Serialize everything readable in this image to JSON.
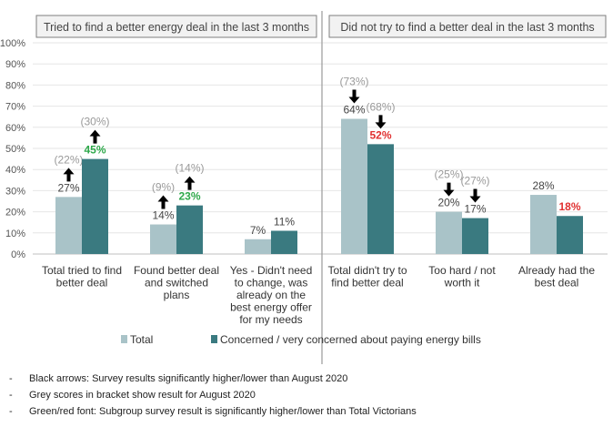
{
  "chart_data": {
    "type": "bar",
    "panels": [
      {
        "title": "Tried to find a better energy deal in the last 3 months"
      },
      {
        "title": "Did not try to find a better deal in the last 3 months"
      }
    ],
    "categories": [
      [
        "Total tried to find",
        "better deal"
      ],
      [
        "Found better deal",
        "and switched",
        "plans"
      ],
      [
        "Yes - Didn't need",
        "to change, was",
        "already on the",
        "best energy offer",
        "for my needs"
      ],
      [
        "Total didn't try to",
        "find better deal"
      ],
      [
        "Too hard / not",
        "worth it"
      ],
      [
        "Already had the",
        "best deal"
      ]
    ],
    "series": [
      {
        "name": "Total",
        "color": "#a9c3c8",
        "values": [
          27,
          14,
          7,
          64,
          20,
          28
        ],
        "labels": [
          "27%",
          "14%",
          "7%",
          "64%",
          "20%",
          "28%"
        ],
        "label_colors": [
          "#444444",
          "#444444",
          "#444444",
          "#444444",
          "#444444",
          "#444444"
        ],
        "prev": [
          "(22%)",
          "(9%)",
          "",
          "(73%)",
          "(25%)",
          ""
        ],
        "arrows": [
          "up",
          "up",
          "",
          "down",
          "down",
          ""
        ]
      },
      {
        "name": "Concerned / very concerned about paying energy bills",
        "color": "#3a7a80",
        "values": [
          45,
          23,
          11,
          52,
          17,
          18
        ],
        "labels": [
          "45%",
          "23%",
          "11%",
          "52%",
          "17%",
          "18%"
        ],
        "label_colors": [
          "#2ea84a",
          "#2ea84a",
          "#444444",
          "#e03030",
          "#444444",
          "#e03030"
        ],
        "prev": [
          "(30%)",
          "(14%)",
          "",
          "(68%)",
          "(27%)",
          ""
        ],
        "arrows": [
          "up",
          "up",
          "",
          "down",
          "down",
          ""
        ]
      }
    ],
    "ylim": [
      0,
      100
    ],
    "yticks": [
      "0%",
      "10%",
      "20%",
      "30%",
      "40%",
      "50%",
      "60%",
      "70%",
      "80%",
      "90%",
      "100%"
    ],
    "legend_position": "bottom-left"
  },
  "notes": [
    "Black arrows: Survey results significantly higher/lower than August 2020",
    "Grey scores in bracket show result for August 2020",
    "Green/red font: Subgroup survey result is significantly higher/lower than Total Victorians"
  ],
  "note_bullet": "-"
}
